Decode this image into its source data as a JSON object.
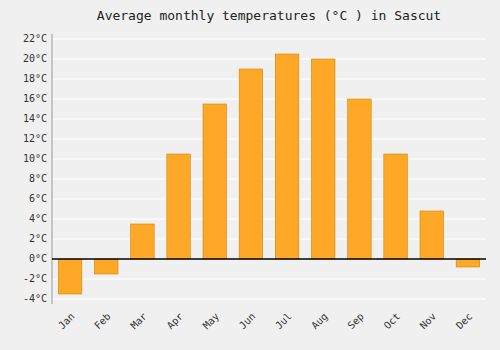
{
  "chart_data": {
    "type": "bar",
    "title": "Average monthly temperatures (°C ) in Sascut",
    "categories": [
      "Jan",
      "Feb",
      "Mar",
      "Apr",
      "May",
      "Jun",
      "Jul",
      "Aug",
      "Sep",
      "Oct",
      "Nov",
      "Dec"
    ],
    "values": [
      -3.5,
      -1.5,
      3.5,
      10.5,
      15.5,
      19.0,
      20.5,
      20.0,
      16.0,
      10.5,
      4.8,
      -0.8
    ],
    "color": "#FFA726",
    "ylim": [
      -4.5,
      22.5
    ],
    "yticks": [
      {
        "value": -4,
        "label": "-4°C"
      },
      {
        "value": -2,
        "label": "-2°C"
      },
      {
        "value": 0,
        "label": "0°C"
      },
      {
        "value": 2,
        "label": "2°C"
      },
      {
        "value": 4,
        "label": "4°C"
      },
      {
        "value": 6,
        "label": "6°C"
      },
      {
        "value": 8,
        "label": "8°C"
      },
      {
        "value": 10,
        "label": "10°C"
      },
      {
        "value": 12,
        "label": "12°C"
      },
      {
        "value": 14,
        "label": "14°C"
      },
      {
        "value": 16,
        "label": "16°C"
      },
      {
        "value": 18,
        "label": "18°C"
      },
      {
        "value": 20,
        "label": "20°C"
      },
      {
        "value": 22,
        "label": "22°C"
      }
    ],
    "grid": true
  }
}
